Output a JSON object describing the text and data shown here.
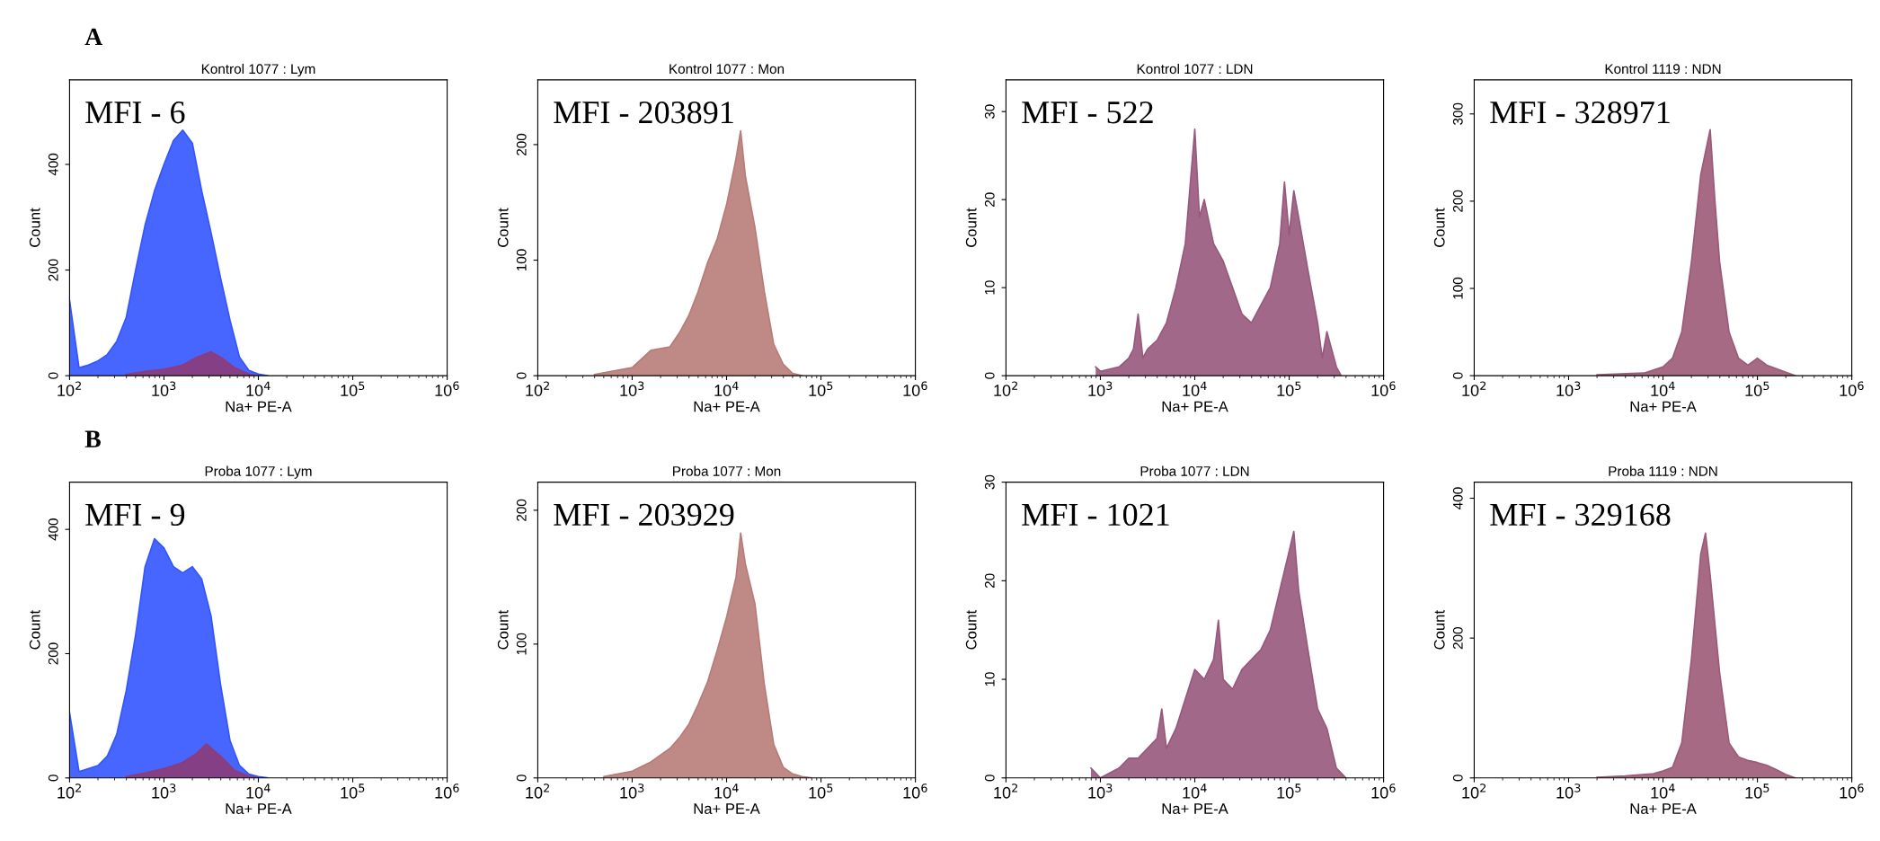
{
  "chart_data": [
    {
      "type": "area",
      "title": "Kontrol 1077 : Lym",
      "xlabel": "Na+ PE-A",
      "ylabel": "Count",
      "log": "x",
      "annotations": [
        "A",
        "MFI - 6"
      ],
      "xlim": [
        100,
        1000000
      ],
      "xticks": [
        {
          "value": 100,
          "label": "10$^{2}$"
        },
        {
          "value": 1000,
          "label": "10$^{3}$"
        },
        {
          "value": 10000,
          "label": "10$^{4}$"
        },
        {
          "value": 100000,
          "label": "10$^{5}$"
        },
        {
          "value": 1000000,
          "label": "10$^{6}$"
        }
      ],
      "ylim": [
        0,
        560
      ],
      "yticks": [
        0,
        200,
        400
      ],
      "series": [
        {
          "color": "#3355ff",
          "x": [
            100,
            126,
            158,
            200,
            251,
            316,
            398,
            501,
            631,
            794,
            1000,
            1260,
            1580,
            2000,
            2510,
            3160,
            3980,
            5010,
            6310,
            7940,
            10000,
            12600
          ],
          "values": [
            143,
            15,
            20,
            28,
            40,
            65,
            110,
            200,
            285,
            350,
            400,
            445,
            465,
            440,
            350,
            270,
            185,
            105,
            35,
            10,
            3,
            0
          ]
        },
        {
          "color": "#8c3c78",
          "x": [
            398,
            631,
            1000,
            1580,
            2240,
            3160,
            3980,
            5620,
            7940,
            10000
          ],
          "values": [
            2,
            8,
            12,
            20,
            35,
            45,
            35,
            15,
            3,
            0
          ]
        }
      ]
    },
    {
      "type": "area",
      "title": "Kontrol 1077 : Mon",
      "xlabel": "Na+ PE-A",
      "ylabel": "Count",
      "log": "x",
      "annotations": [
        "MFI - 203891"
      ],
      "xlim": [
        100,
        1000000
      ],
      "xticks": [
        {
          "value": 100,
          "label": "10$^{2}$"
        },
        {
          "value": 1000,
          "label": "10$^{3}$"
        },
        {
          "value": 10000,
          "label": "10$^{4}$"
        },
        {
          "value": 100000,
          "label": "10$^{5}$"
        },
        {
          "value": 1000000,
          "label": "10$^{6}$"
        }
      ],
      "ylim": [
        0,
        256
      ],
      "yticks": [
        0,
        100,
        200
      ],
      "series": [
        {
          "color": "#b87c78",
          "x": [
            398,
            1000,
            1580,
            2510,
            3160,
            3980,
            5010,
            6310,
            7940,
            10000,
            12600,
            14100,
            15800,
            20000,
            25100,
            31600,
            39800,
            50100,
            63100
          ],
          "values": [
            1,
            7,
            22,
            25,
            37,
            52,
            73,
            98,
            118,
            148,
            188,
            212,
            173,
            128,
            73,
            27,
            10,
            2,
            0
          ]
        }
      ]
    },
    {
      "type": "area",
      "title": "Kontrol 1077 : LDN",
      "xlabel": "Na+ PE-A",
      "ylabel": "Count",
      "log": "x",
      "annotations": [
        "MFI - 522"
      ],
      "xlim": [
        100,
        1000000
      ],
      "xticks": [
        {
          "value": 100,
          "label": "10$^{2}$"
        },
        {
          "value": 1000,
          "label": "10$^{3}$"
        },
        {
          "value": 10000,
          "label": "10$^{4}$"
        },
        {
          "value": 100000,
          "label": "10$^{5}$"
        },
        {
          "value": 1000000,
          "label": "10$^{6}$"
        }
      ],
      "ylim": [
        0,
        33.6
      ],
      "yticks": [
        0,
        10,
        20,
        30
      ],
      "series": [
        {
          "color": "#98587c",
          "x": [
            891,
            1000,
            1580,
            2000,
            2240,
            2510,
            2820,
            3160,
            3980,
            5010,
            6310,
            7940,
            10000,
            11200,
            12600,
            15800,
            20000,
            25100,
            31600,
            39800,
            50100,
            63100,
            79400,
            89100,
            100000,
            112000,
            126000,
            158000,
            200000,
            224000,
            251000,
            316000,
            355000
          ],
          "values": [
            1,
            0.5,
            1,
            2,
            3,
            7,
            2,
            3,
            4,
            6,
            10,
            15,
            28,
            18,
            20,
            15,
            13,
            10,
            7,
            6,
            8,
            10,
            15,
            22,
            16,
            21,
            18,
            12,
            6,
            2,
            5,
            1,
            0
          ]
        }
      ]
    },
    {
      "type": "area",
      "title": "Kontrol 1119 : NDN",
      "xlabel": "Na+ PE-A",
      "ylabel": "Count",
      "log": "x",
      "annotations": [
        "MFI - 328971"
      ],
      "xlim": [
        100,
        1000000
      ],
      "xticks": [
        {
          "value": 100,
          "label": "10$^{2}$"
        },
        {
          "value": 1000,
          "label": "10$^{3}$"
        },
        {
          "value": 10000,
          "label": "10$^{4}$"
        },
        {
          "value": 100000,
          "label": "10$^{5}$"
        },
        {
          "value": 1000000,
          "label": "10$^{6}$"
        }
      ],
      "ylim": [
        0,
        339
      ],
      "yticks": [
        0,
        100,
        200,
        300
      ],
      "series": [
        {
          "color": "#9c5a78",
          "x": [
            2000,
            6310,
            10000,
            12600,
            15800,
            20000,
            25100,
            31600,
            35500,
            39800,
            50100,
            63100,
            79400,
            100000,
            126000,
            158000,
            200000,
            251000
          ],
          "values": [
            1,
            3,
            10,
            20,
            50,
            130,
            230,
            282,
            200,
            130,
            50,
            20,
            12,
            20,
            12,
            8,
            4,
            0
          ]
        }
      ]
    },
    {
      "type": "area",
      "title": "Proba 1077 : Lym",
      "xlabel": "Na+ PE-A",
      "ylabel": "Count",
      "log": "x",
      "annotations": [
        "B",
        "MFI - 9"
      ],
      "xlim": [
        100,
        1000000
      ],
      "xticks": [
        {
          "value": 100,
          "label": "10$^{2}$"
        },
        {
          "value": 1000,
          "label": "10$^{3}$"
        },
        {
          "value": 10000,
          "label": "10$^{4}$"
        },
        {
          "value": 100000,
          "label": "10$^{5}$"
        },
        {
          "value": 1000000,
          "label": "10$^{6}$"
        }
      ],
      "ylim": [
        0,
        476
      ],
      "yticks": [
        0,
        200,
        400
      ],
      "series": [
        {
          "color": "#3355ff",
          "x": [
            100,
            126,
            158,
            200,
            251,
            316,
            398,
            501,
            631,
            794,
            1000,
            1260,
            1580,
            2000,
            2510,
            3160,
            3980,
            5010,
            6310,
            7940,
            10000,
            12600
          ],
          "values": [
            105,
            10,
            15,
            20,
            35,
            70,
            140,
            230,
            340,
            385,
            370,
            340,
            330,
            340,
            320,
            260,
            150,
            60,
            20,
            6,
            2,
            0
          ]
        },
        {
          "color": "#8c3c78",
          "x": [
            398,
            631,
            1000,
            1580,
            2240,
            2820,
            3980,
            5620,
            7940,
            10000
          ],
          "values": [
            2,
            8,
            15,
            25,
            40,
            55,
            35,
            12,
            3,
            0
          ]
        }
      ]
    },
    {
      "type": "area",
      "title": "Proba 1077 : Mon",
      "xlabel": "Na+ PE-A",
      "ylabel": "Count",
      "log": "x",
      "annotations": [
        "MFI - 203929"
      ],
      "xlim": [
        100,
        1000000
      ],
      "xticks": [
        {
          "value": 100,
          "label": "10$^{2}$"
        },
        {
          "value": 1000,
          "label": "10$^{3}$"
        },
        {
          "value": 10000,
          "label": "10$^{4}$"
        },
        {
          "value": 100000,
          "label": "10$^{5}$"
        },
        {
          "value": 1000000,
          "label": "10$^{6}$"
        }
      ],
      "ylim": [
        0,
        221
      ],
      "yticks": [
        0,
        100,
        200
      ],
      "series": [
        {
          "color": "#b87c78",
          "x": [
            501,
            1000,
            1580,
            2510,
            3160,
            3980,
            5010,
            6310,
            7940,
            10000,
            12600,
            14100,
            15800,
            20000,
            25100,
            31600,
            39800,
            50100,
            63100,
            79400
          ],
          "values": [
            1,
            5,
            12,
            22,
            30,
            40,
            55,
            72,
            95,
            120,
            150,
            183,
            160,
            130,
            70,
            25,
            8,
            3,
            1,
            0
          ]
        }
      ]
    },
    {
      "type": "area",
      "title": "Proba 1077 : LDN",
      "xlabel": "Na+ PE-A",
      "ylabel": "Count",
      "log": "x",
      "annotations": [
        "MFI - 1021"
      ],
      "xlim": [
        100,
        1000000
      ],
      "xticks": [
        {
          "value": 100,
          "label": "10$^{2}$"
        },
        {
          "value": 1000,
          "label": "10$^{3}$"
        },
        {
          "value": 10000,
          "label": "10$^{4}$"
        },
        {
          "value": 100000,
          "label": "10$^{5}$"
        },
        {
          "value": 1000000,
          "label": "10$^{6}$"
        }
      ],
      "ylim": [
        0,
        30
      ],
      "yticks": [
        0,
        10,
        20,
        30
      ],
      "series": [
        {
          "color": "#98587c",
          "x": [
            794,
            1000,
            1580,
            2000,
            2510,
            3160,
            3980,
            4470,
            5010,
            6310,
            7940,
            10000,
            12600,
            15800,
            17800,
            20000,
            25100,
            31600,
            39800,
            50100,
            63100,
            79400,
            100000,
            112000,
            126000,
            158000,
            200000,
            251000,
            316000,
            398000
          ],
          "values": [
            1,
            0,
            1,
            2,
            2,
            3,
            4,
            7,
            3,
            5,
            8,
            11,
            10,
            12,
            16,
            10,
            9,
            11,
            12,
            13,
            15,
            19,
            23,
            25,
            19,
            13,
            7,
            5,
            1,
            0
          ]
        }
      ]
    },
    {
      "type": "area",
      "title": "Proba 1119 : NDN",
      "xlabel": "Na+ PE-A",
      "ylabel": "Count",
      "log": "x",
      "annotations": [
        "MFI - 329168"
      ],
      "xlim": [
        100,
        1000000
      ],
      "xticks": [
        {
          "value": 100,
          "label": "10$^{2}$"
        },
        {
          "value": 1000,
          "label": "10$^{3}$"
        },
        {
          "value": 10000,
          "label": "10$^{4}$"
        },
        {
          "value": 100000,
          "label": "10$^{5}$"
        },
        {
          "value": 1000000,
          "label": "10$^{6}$"
        }
      ],
      "ylim": [
        0,
        423
      ],
      "yticks": [
        0,
        200,
        400
      ],
      "series": [
        {
          "color": "#9c5a78",
          "x": [
            2000,
            3980,
            7940,
            10000,
            12600,
            15800,
            20000,
            25100,
            28200,
            31600,
            39800,
            50100,
            63100,
            79400,
            100000,
            126000,
            158000,
            200000,
            251000
          ],
          "values": [
            1,
            3,
            6,
            10,
            15,
            50,
            170,
            320,
            350,
            290,
            150,
            50,
            30,
            25,
            22,
            18,
            12,
            5,
            0
          ]
        }
      ]
    }
  ]
}
